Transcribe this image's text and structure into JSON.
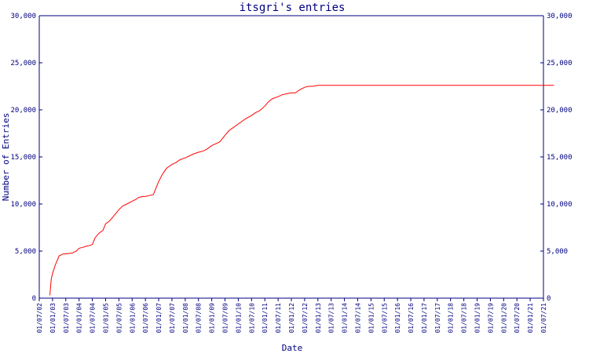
{
  "chart_data": {
    "type": "line",
    "title": "itsgri's entries",
    "xlabel": "Date",
    "ylabel": "Number of Entries",
    "ylim": [
      0,
      30000
    ],
    "y_ticks": [
      0,
      5000,
      10000,
      15000,
      20000,
      25000,
      30000
    ],
    "y_tick_labels": [
      "0",
      "5,000",
      "10,000",
      "15,000",
      "20,000",
      "25,000",
      "30,000"
    ],
    "x_tick_labels": [
      "01/07/02",
      "01/01/03",
      "01/07/03",
      "01/01/04",
      "01/07/04",
      "01/01/05",
      "01/07/05",
      "01/01/06",
      "01/07/06",
      "01/01/07",
      "01/07/07",
      "01/01/08",
      "01/07/08",
      "01/01/09",
      "01/07/09",
      "01/01/10",
      "01/07/10",
      "01/01/11",
      "01/07/11",
      "01/01/12",
      "01/07/12",
      "01/01/13",
      "01/07/13",
      "01/01/14",
      "01/07/14",
      "01/01/15",
      "01/07/15",
      "01/01/16",
      "01/07/16",
      "01/01/17",
      "01/07/17",
      "01/01/18",
      "01/07/18",
      "01/01/19",
      "01/07/19",
      "01/01/20",
      "01/07/20",
      "01/01/21",
      "01/07/21"
    ],
    "grid": false,
    "colors": {
      "line": "#ff0000",
      "axis": "#000080",
      "text": "#000080"
    },
    "series": [
      {
        "x": [
          0.8,
          0.9,
          1.0,
          1.2,
          1.5,
          1.8,
          2.0,
          2.5,
          2.8,
          3.0,
          3.3,
          3.5,
          3.8,
          4.0,
          4.2,
          4.5,
          4.8,
          5.0,
          5.3,
          5.6,
          6.0,
          6.3,
          6.6,
          7.0,
          7.3,
          7.5,
          7.8,
          8.0,
          8.3,
          8.6,
          9.0,
          9.3,
          9.6,
          10.0,
          10.3,
          10.6,
          11.0,
          11.3,
          11.6,
          12.0,
          12.3,
          12.6,
          13.0,
          13.3,
          13.6,
          14.0,
          14.3,
          14.6,
          15.0,
          15.3,
          15.6,
          16.0,
          16.3,
          16.6,
          17.0,
          17.3,
          17.6,
          18.0,
          18.3,
          18.6,
          19.0,
          19.3,
          19.6,
          20.0,
          20.3,
          20.6,
          21.0,
          21.3,
          21.6,
          22.0,
          22.3,
          22.6,
          23.0,
          24,
          25,
          26,
          27,
          28,
          29,
          30,
          31,
          32,
          33,
          34,
          35,
          36,
          37,
          38,
          38.8
        ],
        "y": [
          300,
          2000,
          2600,
          3500,
          4500,
          4700,
          4700,
          4800,
          5000,
          5300,
          5400,
          5500,
          5600,
          5700,
          6400,
          6900,
          7200,
          7900,
          8200,
          8700,
          9400,
          9800,
          10000,
          10300,
          10500,
          10700,
          10800,
          10800,
          10900,
          11000,
          12400,
          13200,
          13800,
          14200,
          14400,
          14700,
          14900,
          15100,
          15300,
          15500,
          15600,
          15800,
          16200,
          16400,
          16600,
          17300,
          17800,
          18100,
          18500,
          18800,
          19100,
          19400,
          19700,
          19900,
          20400,
          20900,
          21200,
          21400,
          21600,
          21700,
          21800,
          21800,
          22100,
          22400,
          22500,
          22500,
          22600,
          22600,
          22600,
          22600,
          22600,
          22600,
          22600,
          22600,
          22600,
          22600,
          22600,
          22600,
          22600,
          22600,
          22600,
          22600,
          22600,
          22600,
          22600,
          22600,
          22600,
          22600,
          22600
        ]
      }
    ]
  }
}
